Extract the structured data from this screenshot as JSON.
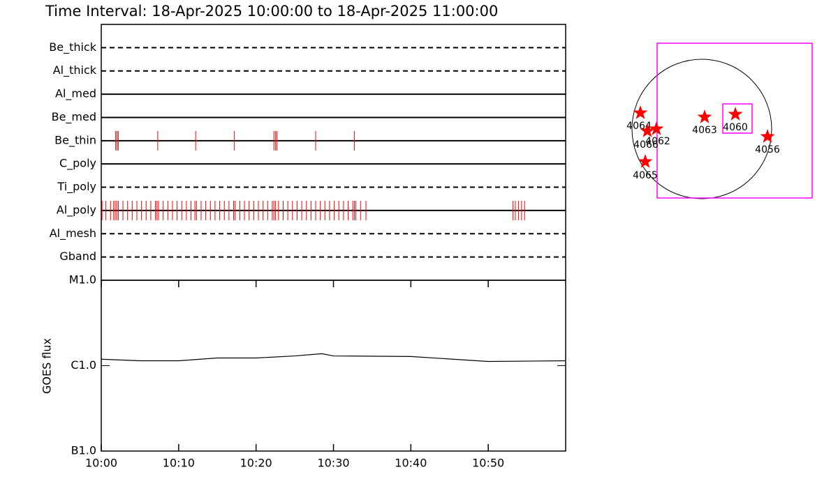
{
  "chart_data": [
    {
      "type": "timeline",
      "title": "Time Interval: 18-Apr-2025 10:00:00 to 18-Apr-2025 11:00:00",
      "categories": [
        "Be_thick",
        "Al_thick",
        "Al_med",
        "Be_med",
        "Be_thin",
        "C_poly",
        "Ti_poly",
        "Al_poly",
        "Al_mesh",
        "Gband"
      ],
      "line_styles": [
        "dashed",
        "dashed",
        "solid",
        "solid",
        "solid",
        "solid",
        "dashed",
        "solid",
        "dashed",
        "dashed"
      ],
      "color": "#ff0000",
      "xlim": [
        0,
        60
      ],
      "event_times": [
        [],
        [],
        [],
        [],
        [
          1.86,
          2.04,
          2.2,
          7.3,
          12.2,
          17.2,
          22.3,
          22.5,
          22.7,
          27.7,
          32.7
        ],
        [],
        [],
        [
          0.1,
          0.6,
          1.2,
          1.6,
          1.8,
          2.0,
          2.2,
          2.8,
          3.4,
          4.0,
          4.6,
          5.2,
          5.8,
          6.4,
          7.0,
          7.2,
          7.4,
          8.0,
          8.6,
          9.2,
          9.8,
          10.4,
          11.0,
          11.6,
          12.1,
          12.3,
          12.9,
          13.5,
          14.1,
          14.7,
          15.3,
          15.9,
          16.5,
          17.1,
          17.3,
          17.9,
          18.5,
          19.1,
          19.7,
          20.3,
          20.9,
          21.5,
          22.1,
          22.3,
          22.5,
          22.9,
          23.5,
          24.1,
          24.7,
          25.3,
          25.9,
          26.5,
          27.1,
          27.7,
          28.3,
          28.9,
          29.5,
          30.1,
          30.7,
          31.3,
          31.9,
          32.5,
          32.7,
          32.9,
          33.5,
          34.2,
          53.2,
          53.5,
          53.9,
          54.3,
          54.7
        ],
        [],
        []
      ]
    },
    {
      "type": "line",
      "y_label": "GOES flux",
      "x": [
        0,
        5,
        10,
        15,
        20,
        25,
        28.5,
        30,
        40,
        50,
        60
      ],
      "values": [
        1.19e-06,
        1.14e-06,
        1.14e-06,
        1.23e-06,
        1.23e-06,
        1.3e-06,
        1.38e-06,
        1.3e-06,
        1.28e-06,
        1.12e-06,
        1.14e-06
      ],
      "color": "#000000",
      "log_y": true,
      "xlim": [
        0,
        60
      ],
      "xticks": [
        {
          "value": 0,
          "label": "10:00"
        },
        {
          "value": 10,
          "label": "10:10"
        },
        {
          "value": 20,
          "label": "10:20"
        },
        {
          "value": 30,
          "label": "10:30"
        },
        {
          "value": 40,
          "label": "10:40"
        },
        {
          "value": 50,
          "label": "10:50"
        }
      ],
      "ylim": [
        1e-07,
        1e-05
      ],
      "yticks": [
        {
          "value": 1e-07,
          "label": "B1.0"
        },
        {
          "value": 1e-06,
          "label": "C1.0"
        },
        {
          "value": 1e-05,
          "label": "M1.0"
        }
      ]
    }
  ],
  "map": {
    "labels": [
      "4064",
      "4066",
      "4062",
      "4063",
      "4060",
      "4056",
      "4065"
    ]
  }
}
